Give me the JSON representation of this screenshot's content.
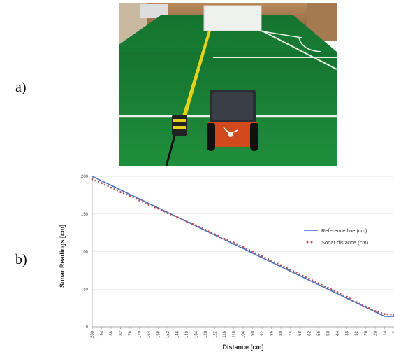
{
  "panels": {
    "a_label": "a)",
    "b_label": "b)"
  },
  "photo": {
    "description_icon": "robot-on-soccer-field-photo"
  },
  "colors": {
    "reference": "#4472c4",
    "sonar": "#c0504d",
    "field": "#1f8b3a"
  },
  "chart_data": {
    "type": "line",
    "title": "",
    "xlabel": "Distance [cm]",
    "ylabel": "Sonar Readings [cm]",
    "ylim": [
      0,
      200
    ],
    "yticks": [
      0,
      50,
      100,
      150,
      200
    ],
    "categories": [
      "200",
      "194",
      "188",
      "182",
      "176",
      "170",
      "164",
      "158",
      "152",
      "146",
      "140",
      "134",
      "128",
      "122",
      "116",
      "110",
      "104",
      "98",
      "92",
      "86",
      "80",
      "74",
      "68",
      "62",
      "56",
      "50",
      "44",
      "38",
      "32",
      "26",
      "20",
      "14",
      "8"
    ],
    "x_values": [
      200,
      194,
      188,
      182,
      176,
      170,
      164,
      158,
      152,
      146,
      140,
      134,
      128,
      122,
      116,
      110,
      104,
      98,
      92,
      86,
      80,
      74,
      68,
      62,
      56,
      50,
      44,
      38,
      32,
      26,
      20,
      14,
      8
    ],
    "legend_position": "right",
    "grid": "horizontal",
    "series": [
      {
        "name": "Reference line (cm)",
        "style": "line",
        "values": [
          200,
          194,
          188,
          182,
          176,
          170,
          164,
          158,
          152,
          146,
          140,
          134,
          128,
          122,
          116,
          110,
          104,
          98,
          92,
          86,
          80,
          74,
          68,
          62,
          56,
          50,
          44,
          38,
          32,
          26,
          20,
          14,
          14
        ]
      },
      {
        "name": "Sonar distance (cm)",
        "style": "dotted",
        "values": [
          196,
          191,
          185,
          179,
          174,
          168,
          162,
          157,
          151,
          146,
          140,
          135,
          129,
          123,
          117,
          112,
          106,
          100,
          94,
          88,
          82,
          76,
          70,
          64,
          58,
          52,
          46,
          40,
          33,
          27,
          21,
          17,
          16
        ]
      }
    ]
  }
}
